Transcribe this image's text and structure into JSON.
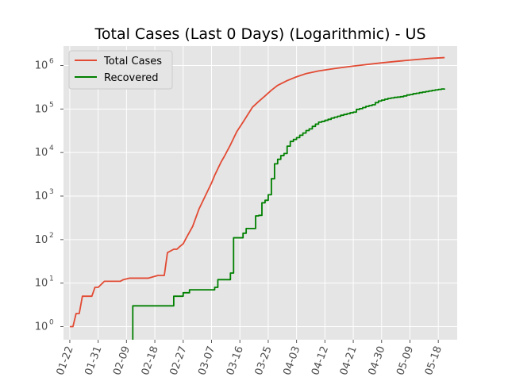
{
  "chart_data": {
    "type": "line",
    "title": "Total Cases (Last 0 Days) (Logarithmic) - US",
    "xlabel": "",
    "ylabel": "",
    "y_scale": "log",
    "ylim": [
      0.5,
      2800000
    ],
    "x_start": "2020-01-20",
    "x_end": "2020-05-24",
    "grid": true,
    "legend_position": "top-left",
    "background_color": "#e5e5e5",
    "x_tick_labels": [
      "01-22",
      "01-31",
      "02-09",
      "02-18",
      "02-27",
      "03-07",
      "03-16",
      "03-25",
      "04-03",
      "04-12",
      "04-21",
      "04-30",
      "05-09",
      "05-18"
    ],
    "x_tick_dates": [
      "2020-01-22",
      "2020-01-31",
      "2020-02-09",
      "2020-02-18",
      "2020-02-27",
      "2020-03-07",
      "2020-03-16",
      "2020-03-25",
      "2020-04-03",
      "2020-04-12",
      "2020-04-21",
      "2020-04-30",
      "2020-05-09",
      "2020-05-18",
      "2020-05-27"
    ],
    "y_ticks": [
      {
        "value": 1,
        "exp": "0"
      },
      {
        "value": 10,
        "exp": "1"
      },
      {
        "value": 100,
        "exp": "2"
      },
      {
        "value": 1000,
        "exp": "3"
      },
      {
        "value": 10000,
        "exp": "4"
      },
      {
        "value": 100000,
        "exp": "5"
      },
      {
        "value": 1000000,
        "exp": "6"
      }
    ],
    "series": [
      {
        "name": "Total Cases",
        "color": "#e24a33",
        "step": false,
        "x": [
          "2020-01-22",
          "2020-01-23",
          "2020-01-24",
          "2020-01-25",
          "2020-01-26",
          "2020-01-29",
          "2020-01-30",
          "2020-01-31",
          "2020-02-02",
          "2020-02-05",
          "2020-02-07",
          "2020-02-08",
          "2020-02-10",
          "2020-02-13",
          "2020-02-15",
          "2020-02-16",
          "2020-02-19",
          "2020-02-21",
          "2020-02-22",
          "2020-02-24",
          "2020-02-25",
          "2020-02-26",
          "2020-02-27",
          "2020-02-28",
          "2020-03-01",
          "2020-03-03",
          "2020-03-05",
          "2020-03-07",
          "2020-03-08",
          "2020-03-10",
          "2020-03-11",
          "2020-03-13",
          "2020-03-15",
          "2020-03-17",
          "2020-03-18",
          "2020-03-20",
          "2020-03-22",
          "2020-03-24",
          "2020-03-26",
          "2020-03-28",
          "2020-03-31",
          "2020-04-03",
          "2020-04-06",
          "2020-04-10",
          "2020-04-15",
          "2020-04-20",
          "2020-04-25",
          "2020-04-30",
          "2020-05-05",
          "2020-05-10",
          "2020-05-15",
          "2020-05-20"
        ],
        "y": [
          1,
          1,
          2,
          2,
          5,
          5,
          8,
          8,
          11,
          11,
          11,
          12,
          13,
          13,
          13,
          13,
          15,
          15,
          50,
          60,
          60,
          70,
          80,
          110,
          200,
          500,
          1000,
          2000,
          3000,
          6000,
          8000,
          15000,
          30000,
          50000,
          65000,
          110000,
          150000,
          200000,
          270000,
          350000,
          450000,
          550000,
          650000,
          750000,
          850000,
          950000,
          1050000,
          1150000,
          1250000,
          1350000,
          1450000,
          1520000
        ]
      },
      {
        "name": "Recovered",
        "color": "#008000",
        "step": true,
        "x": [
          "2020-02-11",
          "2020-02-11",
          "2020-02-24",
          "2020-02-27",
          "2020-02-29",
          "2020-03-08",
          "2020-03-09",
          "2020-03-11",
          "2020-03-13",
          "2020-03-14",
          "2020-03-17",
          "2020-03-18",
          "2020-03-19",
          "2020-03-21",
          "2020-03-22",
          "2020-03-23",
          "2020-03-24",
          "2020-03-25",
          "2020-03-26",
          "2020-03-27",
          "2020-03-28",
          "2020-03-29",
          "2020-03-30",
          "2020-03-31",
          "2020-04-01",
          "2020-04-02",
          "2020-04-03",
          "2020-04-04",
          "2020-04-05",
          "2020-04-06",
          "2020-04-07",
          "2020-04-08",
          "2020-04-09",
          "2020-04-10",
          "2020-04-11",
          "2020-04-12",
          "2020-04-13",
          "2020-04-14",
          "2020-04-15",
          "2020-04-16",
          "2020-04-17",
          "2020-04-18",
          "2020-04-19",
          "2020-04-20",
          "2020-04-21",
          "2020-04-22",
          "2020-04-23",
          "2020-04-24",
          "2020-04-25",
          "2020-04-26",
          "2020-04-27",
          "2020-04-28",
          "2020-04-29",
          "2020-04-30",
          "2020-05-01",
          "2020-05-02",
          "2020-05-03",
          "2020-05-04",
          "2020-05-05",
          "2020-05-06",
          "2020-05-07",
          "2020-05-08",
          "2020-05-09",
          "2020-05-10",
          "2020-05-11",
          "2020-05-12",
          "2020-05-13",
          "2020-05-14",
          "2020-05-15",
          "2020-05-16",
          "2020-05-17",
          "2020-05-18",
          "2020-05-19",
          "2020-05-20"
        ],
        "y": [
          0.3,
          3,
          5,
          6,
          7,
          8,
          12,
          12,
          17,
          110,
          140,
          180,
          180,
          350,
          360,
          700,
          800,
          1070,
          2500,
          5500,
          7000,
          8500,
          9500,
          14000,
          18000,
          20000,
          22000,
          25000,
          28000,
          32000,
          35000,
          40000,
          45000,
          50000,
          52000,
          55000,
          58000,
          62000,
          65000,
          68000,
          72000,
          75000,
          78000,
          82000,
          85000,
          98000,
          102000,
          108000,
          115000,
          120000,
          125000,
          140000,
          153000,
          160000,
          168000,
          175000,
          180000,
          185000,
          188000,
          192000,
          200000,
          210000,
          215000,
          225000,
          230000,
          238000,
          245000,
          252000,
          260000,
          268000,
          275000,
          282000,
          288000,
          295000
        ]
      }
    ]
  }
}
